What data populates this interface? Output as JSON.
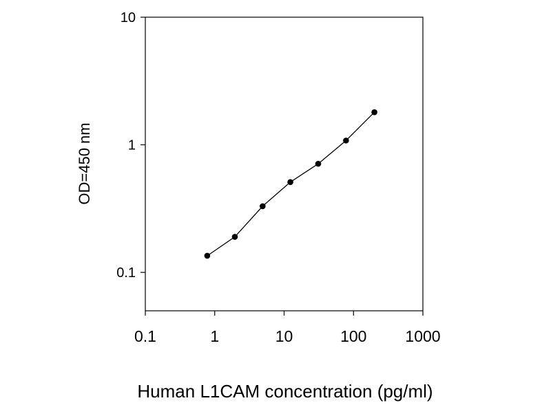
{
  "chart_data": {
    "type": "line",
    "title": "",
    "xlabel": "Human L1CAM concentration (pg/ml)",
    "ylabel": "OD=450 nm",
    "x_scale": "log",
    "y_scale": "log",
    "xlim": [
      0.1,
      1000
    ],
    "ylim": [
      0.05,
      10
    ],
    "x_ticks": [
      0.1,
      1,
      10,
      100,
      1000
    ],
    "x_tick_labels": [
      "0.1",
      "1",
      "10",
      "100",
      "1000"
    ],
    "y_ticks": [
      0.1,
      1,
      10
    ],
    "y_tick_labels": [
      "0.1",
      "1",
      "10"
    ],
    "grid": false,
    "legend": "none",
    "series": [
      {
        "x": [
          0.78,
          1.95,
          4.9,
          12.3,
          31,
          78,
          200
        ],
        "y": [
          0.135,
          0.19,
          0.33,
          0.51,
          0.71,
          1.08,
          1.8
        ]
      }
    ],
    "colors": {
      "line": "#000000",
      "marker": "#000000",
      "axes": "#000000"
    }
  }
}
